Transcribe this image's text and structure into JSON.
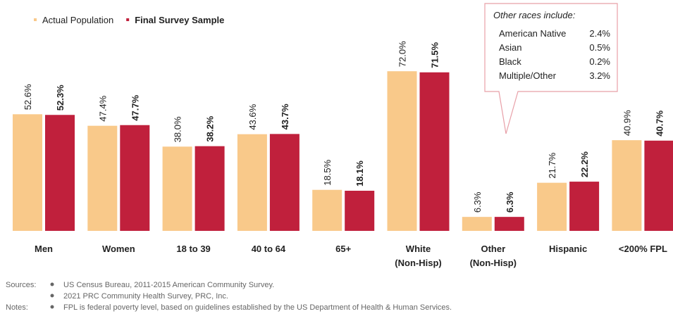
{
  "chart_data": {
    "type": "bar",
    "categories": [
      [
        "Men"
      ],
      [
        "Women"
      ],
      [
        "18 to 39"
      ],
      [
        "40 to 64"
      ],
      [
        "65+"
      ],
      [
        "White",
        "(Non-Hisp)"
      ],
      [
        "Other",
        "(Non-Hisp)"
      ],
      [
        "Hispanic"
      ],
      [
        "<200% FPL"
      ]
    ],
    "series": [
      {
        "name": "Actual Population",
        "color": "#f9c98a",
        "values": [
          52.6,
          47.4,
          38.0,
          43.6,
          18.5,
          72.0,
          6.3,
          21.7,
          40.9
        ],
        "value_labels": [
          "52.6%",
          "47.4%",
          "38.0%",
          "43.6%",
          "18.5%",
          "72.0%",
          "6.3%",
          "21.7%",
          "40.9%"
        ]
      },
      {
        "name": "Final Survey Sample",
        "color": "#c0203c",
        "values": [
          52.3,
          47.7,
          38.2,
          43.7,
          18.1,
          71.5,
          6.3,
          22.2,
          40.7
        ],
        "value_labels": [
          "52.3%",
          "47.7%",
          "38.2%",
          "43.7%",
          "18.1%",
          "71.5%",
          "6.3%",
          "22.2%",
          "40.7%"
        ]
      }
    ],
    "annotation": {
      "title": "Other races include:",
      "rows": [
        {
          "name": "American Native",
          "value": 2.4,
          "label": "2.4%"
        },
        {
          "name": "Asian",
          "value": 0.5,
          "label": "0.5%"
        },
        {
          "name": "Black",
          "value": 0.2,
          "label": "0.2%"
        },
        {
          "name": "Multiple/Other",
          "value": 3.2,
          "label": "3.2%"
        }
      ]
    },
    "footer": {
      "sources_label": "Sources:",
      "sources": [
        "US Census Bureau, 2011-2015 American Community Survey.",
        "2021 PRC Community Health Survey, PRC, Inc."
      ],
      "notes_label": "Notes:",
      "notes": [
        "FPL is federal poverty level, based on guidelines established by the US Department of Health & Human Services."
      ]
    }
  }
}
